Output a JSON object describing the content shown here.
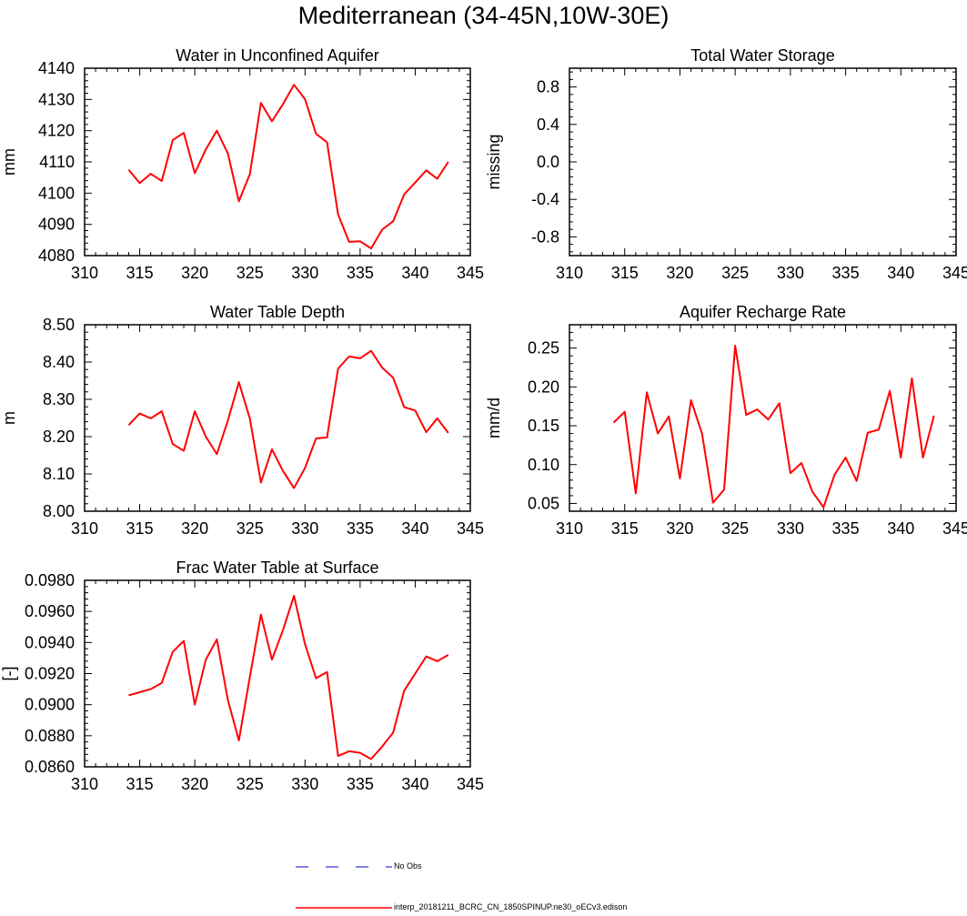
{
  "title": "Mediterranean (34-45N,10W-30E)",
  "colors": {
    "model": "#ff0000",
    "obs": "#0000cc",
    "axis": "#000000"
  },
  "legend": {
    "obs_label": "No Obs",
    "model_label": "interp_20181211_BCRC_CN_1850SPINUP.ne30_oECv3.edison"
  },
  "chart_data": [
    {
      "type": "line",
      "title": "Water in Unconfined Aquifer",
      "ylabel": "mm",
      "xlim": [
        310,
        345
      ],
      "ylim": [
        4080,
        4140
      ],
      "xticks": [
        "310",
        "315",
        "320",
        "325",
        "330",
        "335",
        "340",
        "345"
      ],
      "yticks": [
        "4080",
        "4090",
        "4100",
        "4110",
        "4120",
        "4130",
        "4140"
      ],
      "series": [
        {
          "x": [
            314,
            315,
            316,
            317,
            318,
            319,
            320,
            321,
            322,
            323,
            324,
            325,
            326,
            327,
            328,
            329,
            330,
            331,
            332,
            333,
            334,
            335,
            336,
            337,
            338,
            339,
            340,
            341,
            342,
            343
          ],
          "values": [
            4107.5,
            4103.2,
            4106.2,
            4103.9,
            4117.0,
            4119.3,
            4106.4,
            4114.0,
            4120.0,
            4112.7,
            4097.4,
            4106.1,
            4128.9,
            4123.0,
            4128.5,
            4134.7,
            4130.1,
            4119.0,
            4116.3,
            4093.2,
            4084.4,
            4084.6,
            4082.3,
            4088.3,
            4091.0,
            4099.6,
            4103.4,
            4107.3,
            4104.6,
            4110.0
          ]
        }
      ]
    },
    {
      "type": "line",
      "title": "Total Water Storage",
      "ylabel": "missing",
      "xlim": [
        310,
        345
      ],
      "ylim": [
        -1,
        1
      ],
      "xticks": [
        "310",
        "315",
        "320",
        "325",
        "330",
        "335",
        "340",
        "345"
      ],
      "yticks": [
        "-0.8",
        "-0.4",
        "0.0",
        "0.4",
        "0.8"
      ],
      "series": []
    },
    {
      "type": "line",
      "title": "Water Table Depth",
      "ylabel": "m",
      "xlim": [
        310,
        345
      ],
      "ylim": [
        8.0,
        8.5
      ],
      "xticks": [
        "310",
        "315",
        "320",
        "325",
        "330",
        "335",
        "340",
        "345"
      ],
      "yticks": [
        "8.00",
        "8.10",
        "8.20",
        "8.30",
        "8.40",
        "8.50"
      ],
      "series": [
        {
          "x": [
            314,
            315,
            316,
            317,
            318,
            319,
            320,
            321,
            322,
            323,
            324,
            325,
            326,
            327,
            328,
            329,
            330,
            331,
            332,
            333,
            334,
            335,
            336,
            337,
            338,
            339,
            340,
            341,
            342,
            343
          ],
          "values": [
            8.231,
            8.262,
            8.249,
            8.268,
            8.18,
            8.162,
            8.268,
            8.2,
            8.153,
            8.243,
            8.346,
            8.248,
            8.077,
            8.166,
            8.108,
            8.062,
            8.116,
            8.195,
            8.198,
            8.382,
            8.415,
            8.41,
            8.43,
            8.385,
            8.358,
            8.279,
            8.27,
            8.212,
            8.249,
            8.21
          ]
        }
      ]
    },
    {
      "type": "line",
      "title": "Aquifer Recharge Rate",
      "ylabel": "mm/d",
      "xlim": [
        310,
        345
      ],
      "ylim": [
        0.04,
        0.28
      ],
      "xticks": [
        "310",
        "315",
        "320",
        "325",
        "330",
        "335",
        "340",
        "345"
      ],
      "yticks": [
        "0.05",
        "0.10",
        "0.15",
        "0.20",
        "0.25"
      ],
      "series": [
        {
          "x": [
            314,
            315,
            316,
            317,
            318,
            319,
            320,
            321,
            322,
            323,
            324,
            325,
            326,
            327,
            328,
            329,
            330,
            331,
            332,
            333,
            334,
            335,
            336,
            337,
            338,
            339,
            340,
            341,
            342,
            343
          ],
          "values": [
            0.154,
            0.168,
            0.063,
            0.193,
            0.14,
            0.162,
            0.082,
            0.183,
            0.14,
            0.051,
            0.068,
            0.253,
            0.164,
            0.171,
            0.158,
            0.179,
            0.089,
            0.102,
            0.065,
            0.045,
            0.087,
            0.109,
            0.079,
            0.141,
            0.145,
            0.195,
            0.109,
            0.211,
            0.109,
            0.163
          ]
        }
      ]
    },
    {
      "type": "line",
      "title": "Frac Water Table at Surface",
      "ylabel": "[-]",
      "xlim": [
        310,
        345
      ],
      "ylim": [
        0.086,
        0.098
      ],
      "xticks": [
        "310",
        "315",
        "320",
        "325",
        "330",
        "335",
        "340",
        "345"
      ],
      "yticks": [
        "0.0860",
        "0.0880",
        "0.0900",
        "0.0920",
        "0.0940",
        "0.0960",
        "0.0980"
      ],
      "series": [
        {
          "x": [
            314,
            315,
            316,
            317,
            318,
            319,
            320,
            321,
            322,
            323,
            324,
            325,
            326,
            327,
            328,
            329,
            330,
            331,
            332,
            333,
            334,
            335,
            336,
            337,
            338,
            339,
            340,
            341,
            342,
            343
          ],
          "values": [
            0.0906,
            0.0908,
            0.091,
            0.0914,
            0.0934,
            0.0941,
            0.09,
            0.0929,
            0.0942,
            0.0903,
            0.0877,
            0.0918,
            0.0958,
            0.0929,
            0.0948,
            0.097,
            0.0939,
            0.0917,
            0.0921,
            0.0867,
            0.087,
            0.0869,
            0.0865,
            0.0873,
            0.0882,
            0.0909,
            0.092,
            0.0931,
            0.0928,
            0.0932
          ]
        }
      ]
    }
  ]
}
